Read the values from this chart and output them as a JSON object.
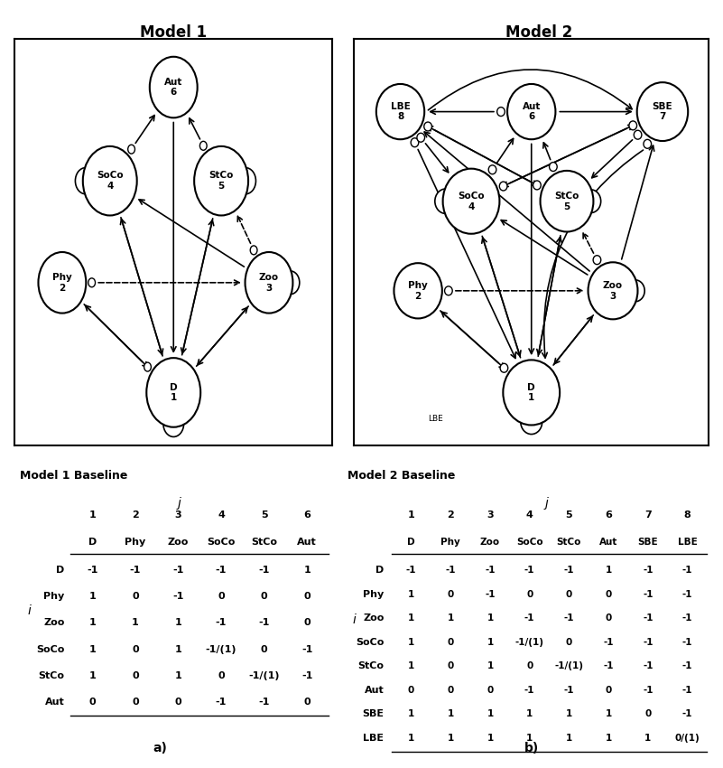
{
  "model1_title": "Model 1",
  "model2_title": "Model 2",
  "table1_title": "Model 1 Baseline",
  "table2_title": "Model 2 Baseline",
  "label_a": "a)",
  "label_b": "b)",
  "model1_nodes": {
    "D": [
      0.5,
      0.13,
      "D\n1",
      0.085
    ],
    "Phy": [
      0.15,
      0.4,
      "Phy\n2",
      0.075
    ],
    "Zoo": [
      0.8,
      0.4,
      "Zoo\n3",
      0.075
    ],
    "SoCo": [
      0.3,
      0.65,
      "SoCo\n4",
      0.085
    ],
    "StCo": [
      0.65,
      0.65,
      "StCo\n5",
      0.085
    ],
    "Aut": [
      0.5,
      0.88,
      "Aut\n6",
      0.075
    ]
  },
  "model2_nodes": {
    "D": [
      0.5,
      0.13,
      "D\n1",
      0.08
    ],
    "Phy": [
      0.18,
      0.38,
      "Phy\n2",
      0.068
    ],
    "Zoo": [
      0.73,
      0.38,
      "Zoo\n3",
      0.07
    ],
    "SoCo": [
      0.33,
      0.6,
      "SoCo\n4",
      0.08
    ],
    "StCo": [
      0.6,
      0.6,
      "StCo\n5",
      0.075
    ],
    "Aut": [
      0.5,
      0.82,
      "Aut\n6",
      0.068
    ],
    "SBE": [
      0.87,
      0.82,
      "SBE\n7",
      0.072
    ],
    "LBE": [
      0.13,
      0.82,
      "LBE\n8",
      0.068
    ]
  },
  "m1_col_nums": [
    "1",
    "2",
    "3",
    "4",
    "5",
    "6"
  ],
  "m1_col_names": [
    "D",
    "Phy",
    "Zoo",
    "SoCo",
    "StCo",
    "Aut"
  ],
  "m1_row_names": [
    "D",
    "Phy",
    "Zoo",
    "SoCo",
    "StCo",
    "Aut"
  ],
  "m1_table_data": [
    [
      "-1",
      "-1",
      "-1",
      "-1",
      "-1",
      "1"
    ],
    [
      "1",
      "0",
      "-1",
      "0",
      "0",
      "0"
    ],
    [
      "1",
      "1",
      "1",
      "-1",
      "-1",
      "0"
    ],
    [
      "1",
      "0",
      "1",
      "-1/(1)",
      "0",
      "-1"
    ],
    [
      "1",
      "0",
      "1",
      "0",
      "-1/(1)",
      "-1"
    ],
    [
      "0",
      "0",
      "0",
      "-1",
      "-1",
      "0"
    ]
  ],
  "m2_col_nums": [
    "1",
    "2",
    "3",
    "4",
    "5",
    "6",
    "7",
    "8"
  ],
  "m2_col_names": [
    "D",
    "Phy",
    "Zoo",
    "SoCo",
    "StCo",
    "Aut",
    "SBE",
    "LBE"
  ],
  "m2_row_names": [
    "D",
    "Phy",
    "Zoo",
    "SoCo",
    "StCo",
    "Aut",
    "SBE",
    "LBE"
  ],
  "m2_table_data": [
    [
      "-1",
      "-1",
      "-1",
      "-1",
      "-1",
      "1",
      "-1",
      "-1"
    ],
    [
      "1",
      "0",
      "-1",
      "0",
      "0",
      "0",
      "-1",
      "-1"
    ],
    [
      "1",
      "1",
      "1",
      "-1",
      "-1",
      "0",
      "-1",
      "-1"
    ],
    [
      "1",
      "0",
      "1",
      "-1/(1)",
      "0",
      "-1",
      "-1",
      "-1"
    ],
    [
      "1",
      "0",
      "1",
      "0",
      "-1/(1)",
      "-1",
      "-1",
      "-1"
    ],
    [
      "0",
      "0",
      "0",
      "-1",
      "-1",
      "0",
      "-1",
      "-1"
    ],
    [
      "1",
      "1",
      "1",
      "1",
      "1",
      "1",
      "0",
      "-1"
    ],
    [
      "1",
      "1",
      "1",
      "1",
      "1",
      "1",
      "1",
      "0/(1)"
    ]
  ]
}
